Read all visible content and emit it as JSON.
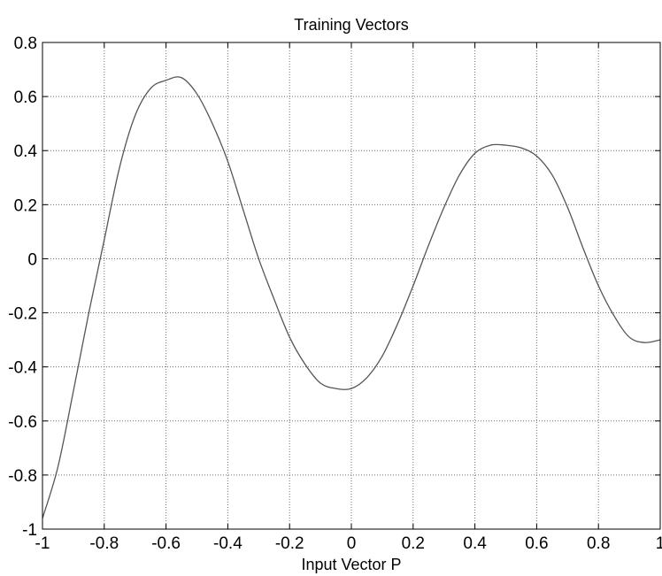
{
  "chart_data": {
    "type": "line",
    "title": "Training Vectors",
    "xlabel": "Input Vector P",
    "ylabel": "",
    "xlim": [
      -1,
      1
    ],
    "ylim": [
      -1,
      0.8
    ],
    "grid": true,
    "legend": "none",
    "xticks": [
      -1,
      -0.8,
      -0.6,
      -0.4,
      -0.2,
      0,
      0.2,
      0.4,
      0.6,
      0.8,
      1
    ],
    "xtick_labels": [
      "-1",
      "-0.8",
      "-0.6",
      "-0.4",
      "-0.2",
      "0",
      "0.2",
      "0.4",
      "0.6",
      "0.8",
      "1"
    ],
    "yticks": [
      -1,
      -0.8,
      -0.6,
      -0.4,
      -0.2,
      0,
      0.2,
      0.4,
      0.6,
      0.8
    ],
    "ytick_labels": [
      "-1",
      "-0.8",
      "-0.6",
      "-0.4",
      "-0.2",
      "0",
      "0.2",
      "0.4",
      "0.6",
      "0.8"
    ],
    "colors": {
      "line": "#555555",
      "axes": "#000000",
      "grid": "#6e6e6e",
      "background": "#ffffff"
    },
    "series": [
      {
        "x": [
          -1.0,
          -0.95,
          -0.9,
          -0.85,
          -0.8,
          -0.75,
          -0.7,
          -0.65,
          -0.6,
          -0.55,
          -0.5,
          -0.45,
          -0.4,
          -0.35,
          -0.3,
          -0.25,
          -0.2,
          -0.15,
          -0.1,
          -0.05,
          0.0,
          0.05,
          0.1,
          0.15,
          0.2,
          0.25,
          0.3,
          0.35,
          0.4,
          0.45,
          0.5,
          0.55,
          0.6,
          0.65,
          0.7,
          0.75,
          0.8,
          0.85,
          0.9,
          0.95,
          1.0
        ],
        "y": [
          -0.96,
          -0.77,
          -0.49,
          -0.2,
          0.07,
          0.34,
          0.53,
          0.63,
          0.66,
          0.67,
          0.61,
          0.5,
          0.36,
          0.18,
          0.0,
          -0.15,
          -0.29,
          -0.39,
          -0.46,
          -0.48,
          -0.48,
          -0.44,
          -0.36,
          -0.24,
          -0.1,
          0.05,
          0.19,
          0.31,
          0.39,
          0.42,
          0.42,
          0.41,
          0.38,
          0.31,
          0.19,
          0.04,
          -0.1,
          -0.21,
          -0.29,
          -0.31,
          -0.3
        ]
      }
    ]
  }
}
